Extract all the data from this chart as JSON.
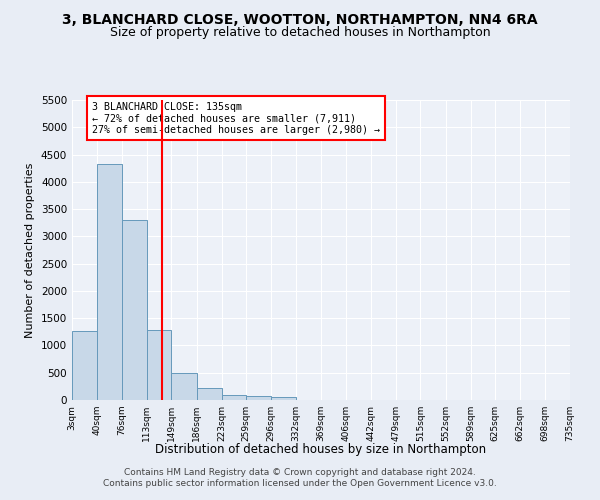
{
  "title": "3, BLANCHARD CLOSE, WOOTTON, NORTHAMPTON, NN4 6RA",
  "subtitle": "Size of property relative to detached houses in Northampton",
  "xlabel": "Distribution of detached houses by size in Northampton",
  "ylabel": "Number of detached properties",
  "footer_line1": "Contains HM Land Registry data © Crown copyright and database right 2024.",
  "footer_line2": "Contains public sector information licensed under the Open Government Licence v3.0.",
  "annotation_line1": "3 BLANCHARD CLOSE: 135sqm",
  "annotation_line2": "← 72% of detached houses are smaller (7,911)",
  "annotation_line3": "27% of semi-detached houses are larger (2,980) →",
  "bar_color": "#c8d8e8",
  "bar_edge_color": "#6699bb",
  "red_line_x": 135,
  "bin_edges": [
    3,
    40,
    76,
    113,
    149,
    186,
    223,
    259,
    296,
    332,
    369,
    406,
    442,
    479,
    515,
    552,
    589,
    625,
    662,
    698,
    735
  ],
  "bin_counts": [
    1270,
    4330,
    3300,
    1280,
    490,
    215,
    90,
    65,
    55,
    0,
    0,
    0,
    0,
    0,
    0,
    0,
    0,
    0,
    0,
    0
  ],
  "ylim": [
    0,
    5500
  ],
  "yticks": [
    0,
    500,
    1000,
    1500,
    2000,
    2500,
    3000,
    3500,
    4000,
    4500,
    5000,
    5500
  ],
  "bg_color": "#e8edf5",
  "plot_bg_color": "#edf1f8",
  "grid_color": "#ffffff",
  "title_fontsize": 10,
  "subtitle_fontsize": 9,
  "red_line_color": "red",
  "footer_fontsize": 6.5
}
